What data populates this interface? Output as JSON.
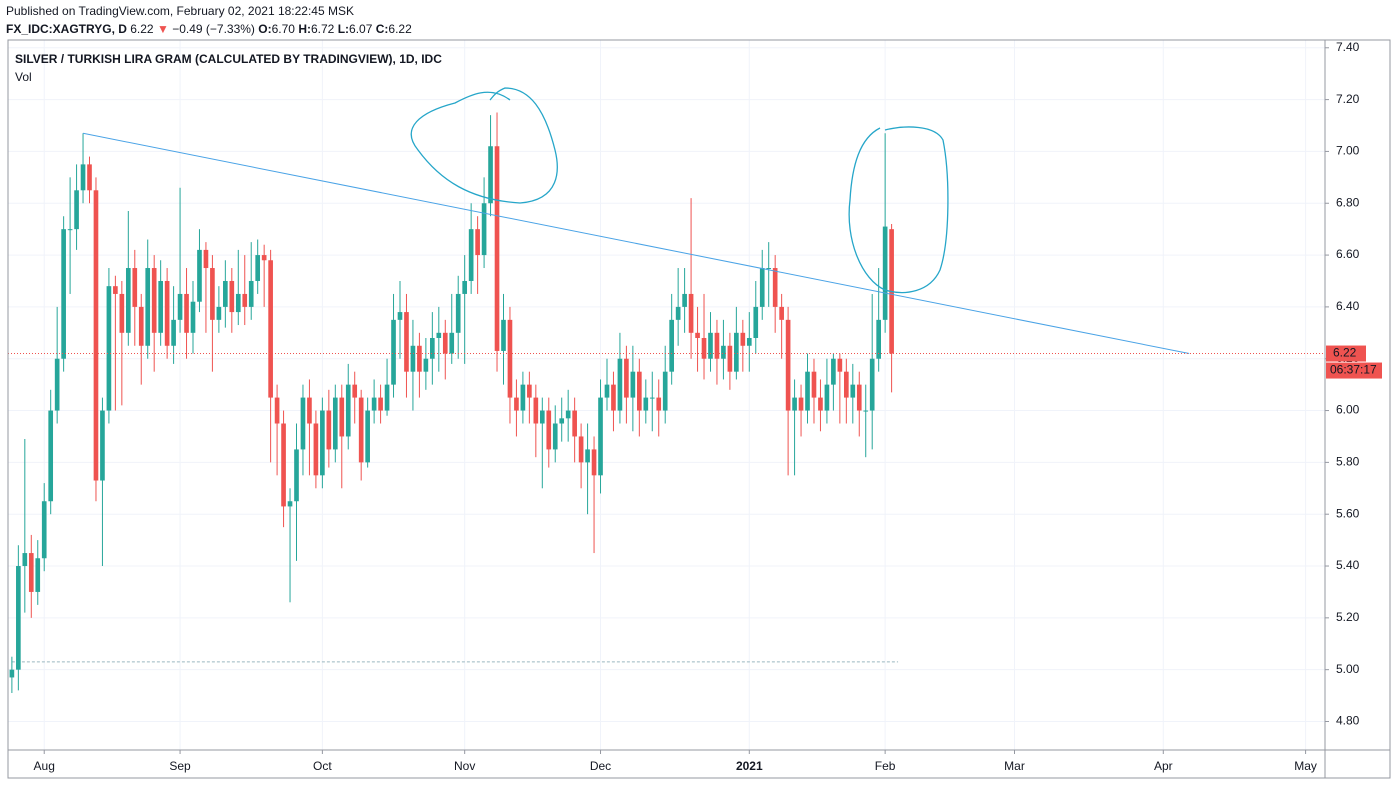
{
  "header": {
    "published": "Published on TradingView.com, February 02, 2021 18:22:45 MSK",
    "symbol": "FX_IDC:XAGTRYG, D",
    "last": "6.22",
    "arrow": "▼",
    "change": "−0.49 (−7.33%)",
    "o_label": "O:",
    "o": "6.70",
    "h_label": "H:",
    "h": "6.72",
    "l_label": "L:",
    "l": "6.07",
    "c_label": "C:",
    "c": "6.22"
  },
  "chart_data": {
    "type": "candlestick",
    "title": "SILVER / TURKISH LIRA GRAM (CALCULATED BY TRADINGVIEW), 1D, IDC",
    "subtitle": "Vol",
    "up_color": "#26a69a",
    "down_color": "#ef5350",
    "open": [
      4.97,
      5.0,
      5.4,
      5.45,
      5.3,
      5.43,
      5.65,
      6.0,
      6.2,
      6.7,
      6.7,
      6.85,
      6.95,
      6.85,
      5.73,
      6.0,
      6.48,
      6.45,
      6.3,
      6.55,
      6.4,
      6.25,
      6.55,
      6.3,
      6.5,
      6.25,
      6.35,
      6.45,
      6.3,
      6.42,
      6.62,
      6.55,
      6.35,
      6.4,
      6.5,
      6.38,
      6.45,
      6.4,
      6.5,
      6.6,
      6.58,
      6.05,
      5.95,
      5.63,
      5.65,
      5.85,
      6.05,
      5.95,
      5.75,
      6.0,
      5.85,
      6.05,
      5.9,
      6.1,
      6.05,
      5.8,
      6.0,
      6.05,
      6.0,
      6.1,
      6.35,
      6.38,
      6.15,
      6.25,
      6.15,
      6.2,
      6.28,
      6.3,
      6.22,
      6.3,
      6.45,
      6.5,
      6.7,
      6.6,
      6.8,
      7.02,
      6.23,
      6.35,
      6.05,
      6.0,
      6.1,
      6.05,
      5.95,
      6.0,
      5.85,
      5.95,
      5.97,
      6.0,
      5.9,
      5.8,
      5.85,
      5.75,
      6.05,
      6.1,
      6.0,
      6.2,
      6.05,
      6.15,
      6.0,
      6.05,
      6.05,
      6.0,
      6.15,
      6.35,
      6.4,
      6.45,
      6.3,
      6.28,
      6.2,
      6.3,
      6.2,
      6.25,
      6.15,
      6.3,
      6.25,
      6.28,
      6.4,
      6.55,
      6.55,
      6.4,
      6.35,
      6.0,
      6.05,
      6.0,
      6.15,
      6.05,
      6.0,
      6.1,
      6.2,
      6.15,
      6.05,
      6.1,
      6.0,
      6.0,
      6.2,
      6.35,
      6.7
    ],
    "high": [
      5.05,
      5.48,
      5.89,
      5.52,
      5.5,
      5.72,
      6.08,
      6.4,
      6.75,
      6.9,
      6.95,
      7.07,
      6.98,
      6.9,
      6.05,
      6.55,
      6.52,
      6.5,
      6.77,
      6.62,
      6.45,
      6.66,
      6.6,
      6.58,
      6.55,
      6.48,
      6.86,
      6.55,
      6.5,
      6.7,
      6.65,
      6.6,
      6.48,
      6.58,
      6.55,
      6.62,
      6.6,
      6.65,
      6.66,
      6.64,
      6.62,
      6.1,
      6.0,
      5.7,
      5.95,
      6.1,
      6.12,
      6.0,
      6.05,
      6.08,
      6.1,
      6.1,
      6.18,
      6.15,
      6.08,
      6.05,
      6.12,
      6.1,
      6.2,
      6.45,
      6.5,
      6.45,
      6.35,
      6.3,
      6.28,
      6.38,
      6.4,
      6.35,
      6.45,
      6.52,
      6.6,
      6.8,
      6.75,
      6.9,
      7.14,
      7.15,
      6.45,
      6.4,
      6.12,
      6.15,
      6.15,
      6.1,
      6.05,
      6.05,
      6.02,
      6.05,
      6.08,
      6.05,
      5.95,
      5.95,
      5.9,
      6.12,
      6.2,
      6.15,
      6.3,
      6.25,
      6.25,
      6.2,
      6.12,
      6.15,
      6.12,
      6.25,
      6.45,
      6.55,
      6.55,
      6.82,
      6.4,
      6.45,
      6.38,
      6.35,
      6.35,
      6.3,
      6.4,
      6.35,
      6.38,
      6.5,
      6.62,
      6.65,
      6.6,
      6.45,
      6.4,
      6.12,
      6.1,
      6.22,
      6.2,
      6.12,
      6.2,
      6.22,
      6.22,
      6.2,
      6.18,
      6.15,
      6.1,
      6.45,
      6.55,
      7.07,
      6.72
    ],
    "low": [
      4.91,
      4.92,
      5.22,
      5.2,
      5.25,
      5.38,
      5.6,
      5.95,
      6.15,
      6.45,
      6.62,
      6.8,
      6.8,
      5.65,
      5.4,
      5.95,
      6.0,
      6.02,
      6.25,
      6.25,
      6.1,
      6.2,
      6.15,
      6.25,
      6.2,
      6.18,
      6.3,
      6.2,
      6.22,
      6.38,
      6.3,
      6.15,
      6.3,
      6.32,
      6.3,
      6.33,
      6.33,
      6.35,
      6.45,
      6.4,
      5.8,
      5.75,
      5.55,
      5.26,
      5.42,
      5.75,
      5.75,
      5.7,
      5.7,
      5.78,
      5.8,
      5.7,
      5.85,
      5.95,
      5.73,
      5.78,
      5.95,
      5.95,
      5.98,
      6.05,
      6.2,
      6.05,
      6.0,
      6.05,
      6.08,
      6.1,
      6.15,
      6.12,
      6.18,
      6.2,
      6.18,
      6.45,
      6.45,
      6.55,
      6.75,
      6.15,
      6.1,
      5.95,
      5.9,
      5.95,
      5.95,
      5.82,
      5.7,
      5.78,
      5.8,
      5.88,
      5.88,
      5.8,
      5.7,
      5.6,
      5.45,
      5.68,
      6.0,
      5.92,
      5.95,
      5.95,
      5.92,
      5.9,
      5.95,
      5.92,
      5.9,
      5.95,
      6.1,
      6.25,
      6.3,
      6.2,
      6.15,
      6.12,
      6.15,
      6.1,
      6.12,
      6.08,
      6.12,
      6.15,
      6.15,
      6.22,
      6.35,
      6.4,
      6.3,
      6.2,
      5.75,
      5.75,
      5.9,
      5.95,
      5.95,
      5.92,
      5.95,
      6.0,
      5.95,
      5.95,
      5.95,
      5.9,
      5.82,
      5.85,
      6.15,
      6.3,
      6.07
    ],
    "close": [
      5.0,
      5.4,
      5.45,
      5.3,
      5.43,
      5.65,
      6.0,
      6.2,
      6.7,
      6.7,
      6.85,
      6.95,
      6.85,
      5.73,
      6.0,
      6.48,
      6.45,
      6.3,
      6.55,
      6.4,
      6.25,
      6.55,
      6.3,
      6.5,
      6.25,
      6.35,
      6.45,
      6.3,
      6.42,
      6.62,
      6.55,
      6.35,
      6.4,
      6.5,
      6.38,
      6.45,
      6.4,
      6.5,
      6.6,
      6.58,
      6.05,
      5.95,
      5.63,
      5.65,
      5.85,
      6.05,
      5.95,
      5.75,
      6.0,
      5.85,
      6.05,
      5.9,
      6.1,
      6.05,
      5.8,
      6.0,
      6.05,
      6.0,
      6.1,
      6.35,
      6.38,
      6.15,
      6.25,
      6.15,
      6.2,
      6.28,
      6.3,
      6.22,
      6.3,
      6.45,
      6.5,
      6.7,
      6.6,
      6.8,
      7.02,
      6.23,
      6.35,
      6.05,
      6.0,
      6.1,
      6.05,
      5.95,
      6.0,
      5.85,
      5.95,
      5.97,
      6.0,
      5.9,
      5.8,
      5.85,
      5.75,
      6.05,
      6.1,
      6.0,
      6.2,
      6.05,
      6.15,
      6.0,
      6.05,
      6.05,
      6.0,
      6.15,
      6.35,
      6.4,
      6.45,
      6.3,
      6.28,
      6.2,
      6.3,
      6.2,
      6.25,
      6.15,
      6.3,
      6.25,
      6.28,
      6.4,
      6.55,
      6.55,
      6.4,
      6.35,
      6.0,
      6.05,
      6.0,
      6.15,
      6.05,
      6.0,
      6.1,
      6.2,
      6.15,
      6.05,
      6.1,
      6.0,
      6.0,
      6.2,
      6.35,
      6.71,
      6.22
    ],
    "price_label": "6.22",
    "countdown": "06:37:17",
    "trendline": {
      "x": [
        11,
        182
      ],
      "y": [
        7.07,
        6.22
      ],
      "color": "#4aa3e6"
    },
    "hline": {
      "value": 5.03,
      "x": [
        0,
        137
      ],
      "color": "#9bb8c0"
    },
    "xlim": [
      -0.6,
      203
    ],
    "xticks": [
      {
        "value": 5,
        "label": "Aug"
      },
      {
        "value": 26,
        "label": "Sep"
      },
      {
        "value": 48,
        "label": "Oct"
      },
      {
        "value": 70,
        "label": "Nov"
      },
      {
        "value": 91,
        "label": "Dec"
      },
      {
        "value": 114,
        "label": "2021"
      },
      {
        "value": 135,
        "label": "Feb"
      },
      {
        "value": 155,
        "label": "Mar"
      },
      {
        "value": 178,
        "label": "Apr"
      },
      {
        "value": 200,
        "label": "May"
      }
    ],
    "ylim": [
      4.69,
      7.43
    ],
    "yticks": [
      {
        "value": 4.8,
        "label": "4.80"
      },
      {
        "value": 5.0,
        "label": "5.00"
      },
      {
        "value": 5.2,
        "label": "5.20"
      },
      {
        "value": 5.4,
        "label": "5.40"
      },
      {
        "value": 5.6,
        "label": "5.60"
      },
      {
        "value": 5.8,
        "label": "5.80"
      },
      {
        "value": 6.0,
        "label": "6.00"
      },
      {
        "value": 6.2,
        "label": "6.20"
      },
      {
        "value": 6.4,
        "label": "6.40"
      },
      {
        "value": 6.6,
        "label": "6.60"
      },
      {
        "value": 6.8,
        "label": "6.80"
      },
      {
        "value": 7.0,
        "label": "7.00"
      },
      {
        "value": 7.2,
        "label": "7.20"
      },
      {
        "value": 7.4,
        "label": "7.40"
      }
    ],
    "grid": true
  }
}
